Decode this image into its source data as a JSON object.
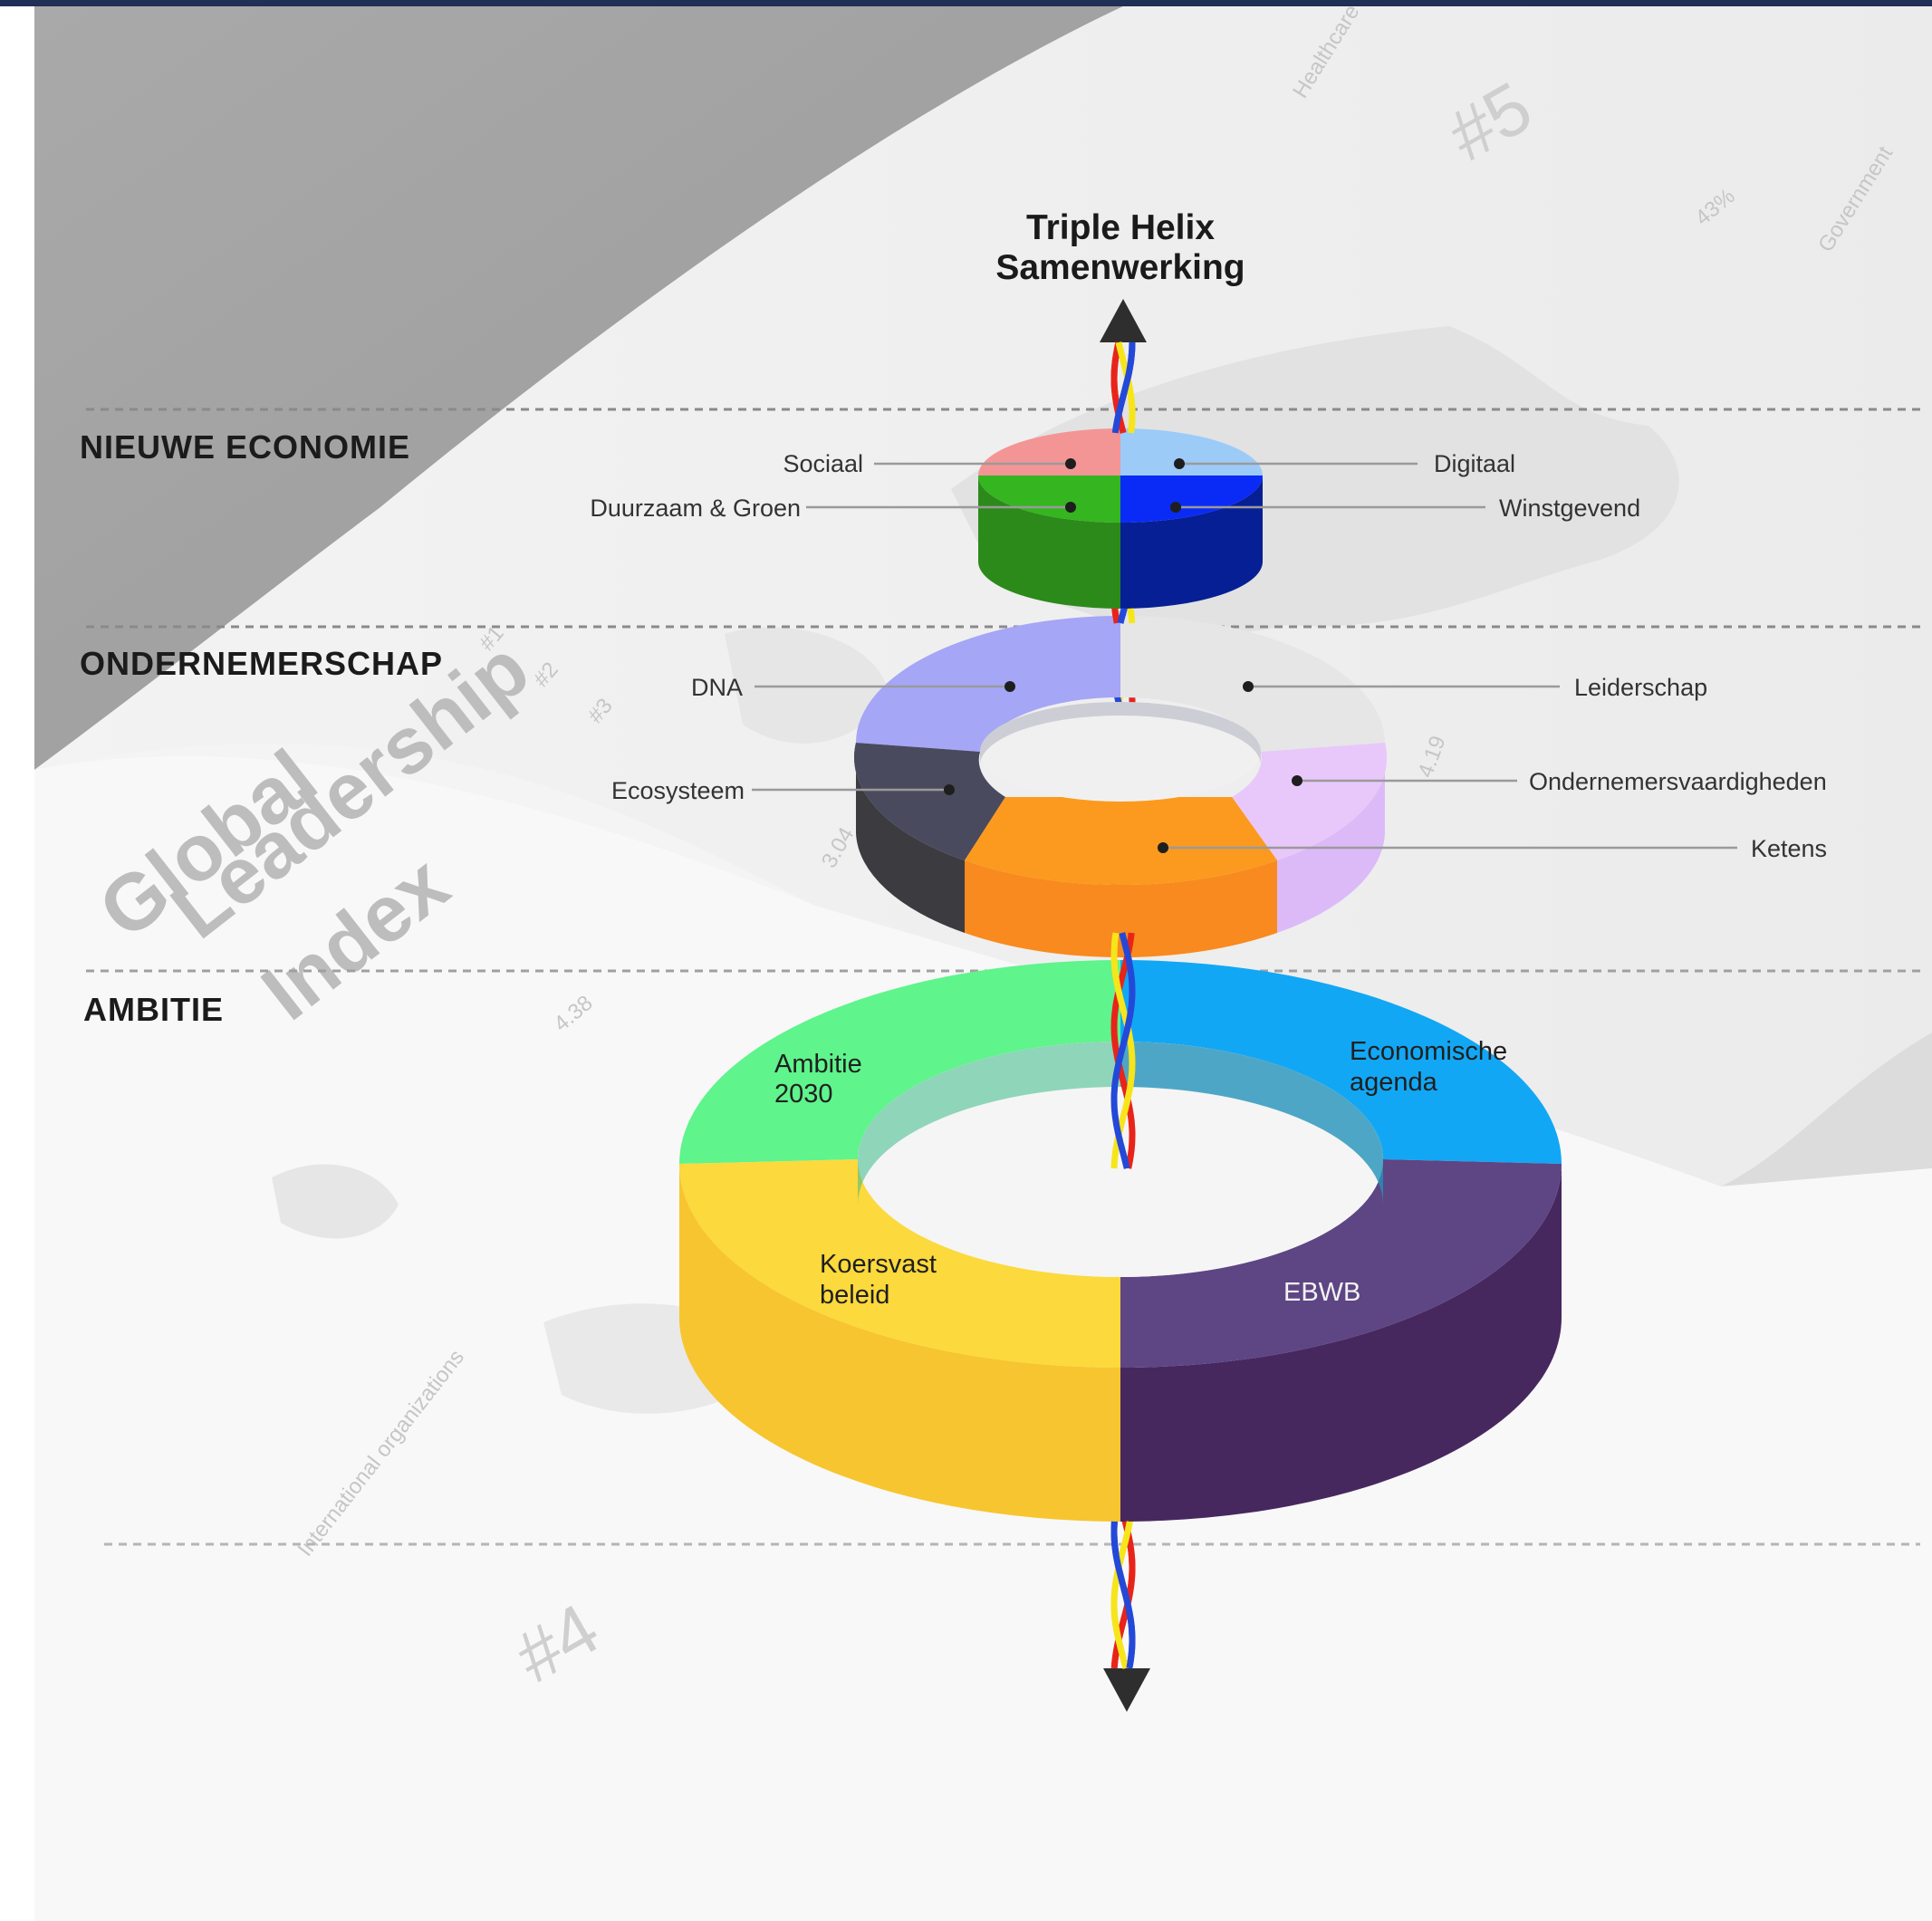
{
  "title": {
    "line1": "Triple Helix",
    "line2": "Samenwerking"
  },
  "sections": [
    {
      "label": "NIEUWE ECONOMIE"
    },
    {
      "label": "ONDERNEMERSCHAP"
    },
    {
      "label": "AMBITIE"
    }
  ],
  "layers": {
    "nieuwe_economie": {
      "segments": [
        {
          "label": "Sociaal",
          "color": "#f49595"
        },
        {
          "label": "Digitaal",
          "color": "#9ccbf8"
        },
        {
          "label": "Duurzaam & Groen",
          "color": "#35b520"
        },
        {
          "label": "Winstgevend",
          "color": "#0a2bf5"
        }
      ]
    },
    "ondernemerschap": {
      "segments": [
        {
          "label": "DNA",
          "color": "#a5a6f6"
        },
        {
          "label": "Leiderschap",
          "color": "#e6e6e6"
        },
        {
          "label": "Ecosysteem",
          "color": "#4a4a5e"
        },
        {
          "label": "Ondernemersvaardigheden",
          "color": "#e8c8fa"
        },
        {
          "label": "Ketens",
          "color": "#fb9a1e"
        }
      ]
    },
    "ambitie": {
      "segments": [
        {
          "label_line1": "Ambitie",
          "label_line2": "2030",
          "color": "#5ff48c"
        },
        {
          "label_line1": "Economische",
          "label_line2": "agenda",
          "color": "#12a7f4"
        },
        {
          "label_line1": "Koersvast",
          "label_line2": "beleid",
          "color": "#fcd93c"
        },
        {
          "label_line1": "EBWB",
          "label_line2": "",
          "color": "#5e4584"
        }
      ]
    }
  },
  "background": {
    "book_title": [
      "Global",
      "Leadership",
      "Index"
    ],
    "page_words": [
      "Healthcare",
      "Government",
      "#5",
      "#4",
      "International organizations"
    ],
    "markers": [
      "#1",
      "#2",
      "#3"
    ],
    "scores": [
      "4.19",
      "3.04",
      "4.38",
      "43%"
    ]
  },
  "colors": {
    "helix_red": "#e8241a",
    "helix_yellow": "#f7e51c",
    "helix_blue": "#2449d8",
    "arrow": "#2e2e2e",
    "top_bar": "#1f2f55"
  }
}
